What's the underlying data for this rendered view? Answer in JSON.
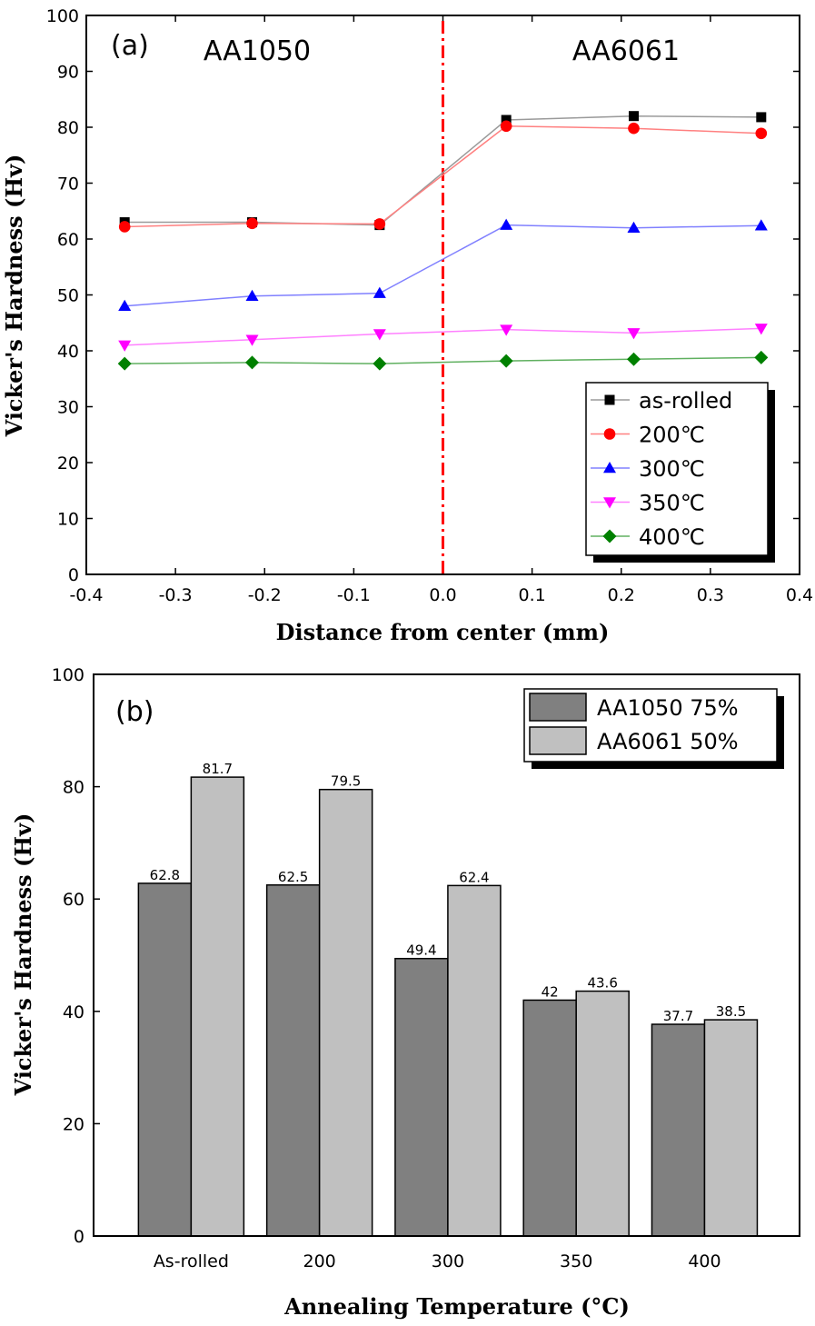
{
  "chart_data": [
    {
      "type": "line",
      "panel_label": "(a)",
      "annotations": [
        "AA1050",
        "AA6061"
      ],
      "xlabel": "Distance from center (mm)",
      "ylabel": "Vicker's Hardness (Hv)",
      "xlim": [
        -0.4,
        0.4
      ],
      "ylim": [
        0,
        100
      ],
      "xticks": [
        "-0.4",
        "-0.3",
        "-0.2",
        "-0.1",
        "0.0",
        "0.1",
        "0.2",
        "0.3",
        "0.4"
      ],
      "yticks": [
        "0",
        "10",
        "20",
        "30",
        "40",
        "50",
        "60",
        "70",
        "80",
        "90",
        "100"
      ],
      "x": [
        -0.357,
        -0.214,
        -0.071,
        0.071,
        0.214,
        0.357
      ],
      "center_line_x": 0.0,
      "legend_position": "bottom-right",
      "series": [
        {
          "name": "as-rolled",
          "color": "#000000",
          "line_color": "#9a9a9a",
          "marker": "square",
          "values": [
            63.0,
            63.0,
            62.5,
            81.3,
            82.0,
            81.8
          ]
        },
        {
          "name": "200℃",
          "color": "#ff0000",
          "line_color": "#ff8080",
          "marker": "circle",
          "values": [
            62.2,
            62.8,
            62.7,
            80.2,
            79.8,
            78.9
          ]
        },
        {
          "name": "300℃",
          "color": "#0000ff",
          "line_color": "#8080ff",
          "marker": "triangle-up",
          "values": [
            48.0,
            49.8,
            50.3,
            62.5,
            62.0,
            62.4
          ]
        },
        {
          "name": "350℃",
          "color": "#ff00ff",
          "line_color": "#ff80ff",
          "marker": "triangle-down",
          "values": [
            41.0,
            42.0,
            43.0,
            43.8,
            43.2,
            44.0
          ]
        },
        {
          "name": "400℃",
          "color": "#008000",
          "line_color": "#60b060",
          "marker": "diamond",
          "values": [
            37.7,
            37.9,
            37.7,
            38.2,
            38.5,
            38.8
          ]
        }
      ]
    },
    {
      "type": "bar",
      "panel_label": "(b)",
      "xlabel": "Annealing Temperature (°C)",
      "ylabel": "Vicker's Hardness (Hv)",
      "ylim": [
        0,
        100
      ],
      "yticks": [
        "0",
        "20",
        "40",
        "60",
        "80",
        "100"
      ],
      "categories": [
        "As-rolled",
        "200",
        "300",
        "350",
        "400"
      ],
      "legend_position": "top-right",
      "series": [
        {
          "name": "AA1050 75%",
          "color": "#808080",
          "values": [
            62.8,
            62.5,
            49.4,
            42,
            37.7
          ],
          "labels": [
            "62.8",
            "62.5",
            "49.4",
            "42",
            "37.7"
          ]
        },
        {
          "name": "AA6061 50%",
          "color": "#c0c0c0",
          "values": [
            81.7,
            79.5,
            62.4,
            43.6,
            38.5
          ],
          "labels": [
            "81.7",
            "79.5",
            "62.4",
            "43.6",
            "38.5"
          ]
        }
      ]
    }
  ]
}
